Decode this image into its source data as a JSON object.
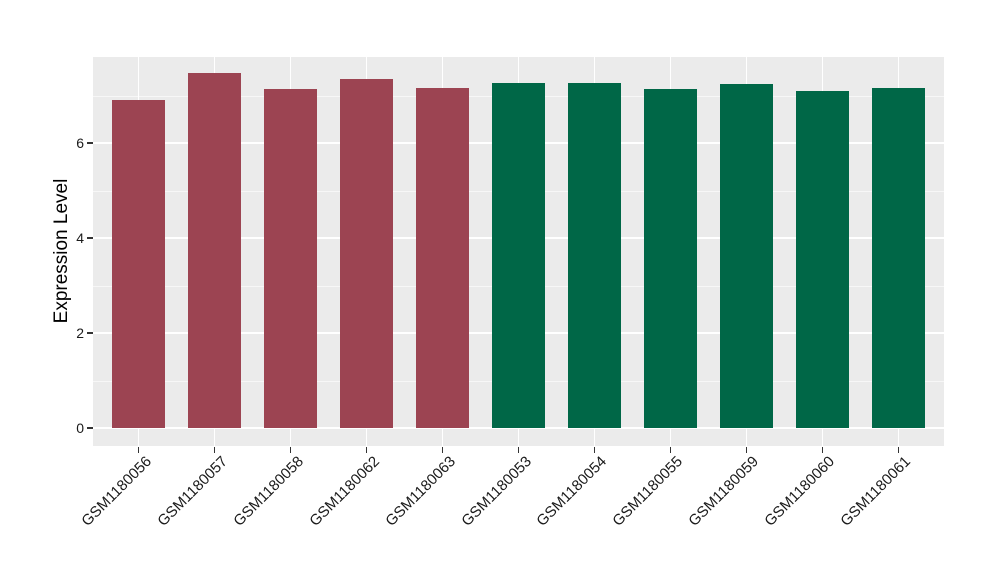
{
  "figure": {
    "background": "#FFFFFF",
    "panel_background": "#EBEBEB",
    "grid_color": "#FFFFFF",
    "tick_color": "#333333",
    "axis_text_color": "#1A1A1A"
  },
  "chart_data": {
    "type": "bar",
    "title": "",
    "xlabel": "",
    "ylabel": "Expression Level",
    "categories": [
      "GSM1180056",
      "GSM1180057",
      "GSM1180058",
      "GSM1180062",
      "GSM1180063",
      "GSM1180053",
      "GSM1180054",
      "GSM1180055",
      "GSM1180059",
      "GSM1180060",
      "GSM1180061"
    ],
    "values": [
      6.91,
      7.47,
      7.14,
      7.35,
      7.16,
      7.27,
      7.26,
      7.14,
      7.24,
      7.09,
      7.16
    ],
    "bar_groups": [
      "group1",
      "group1",
      "group1",
      "group1",
      "group1",
      "group2",
      "group2",
      "group2",
      "group2",
      "group2",
      "group2"
    ],
    "group_colors": {
      "group1": "#9C4452",
      "group2": "#006747"
    },
    "y_axis": {
      "ticks": [
        0,
        2,
        4,
        6
      ],
      "minor_ticks": [
        1,
        3,
        5,
        7
      ],
      "range": [
        -0.38,
        7.81
      ]
    },
    "x_tick_rotation": 45,
    "grid": true,
    "legend": "none"
  }
}
